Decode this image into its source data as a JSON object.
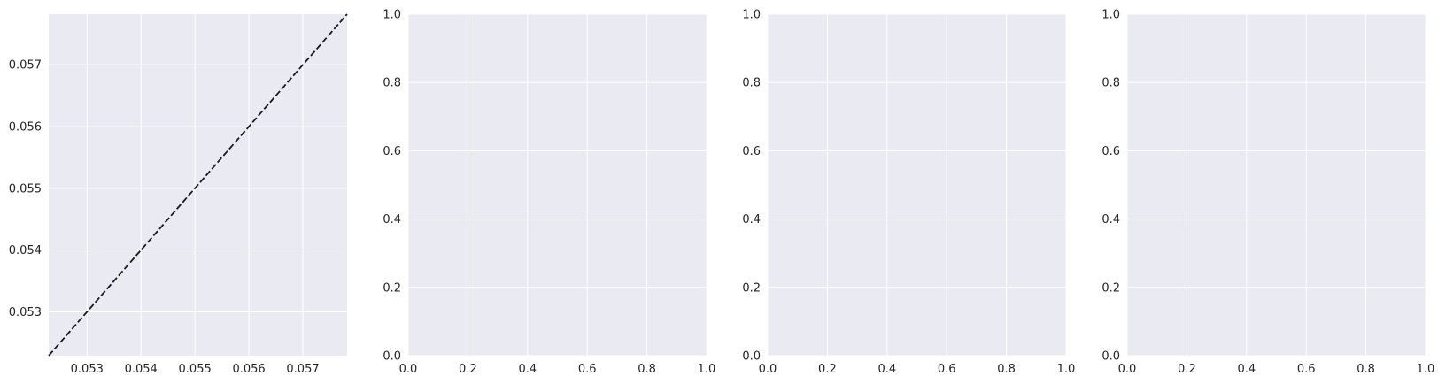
{
  "chart_data": [
    {
      "type": "line",
      "title": "",
      "xlabel": "",
      "ylabel": "",
      "xlim": [
        0.05229,
        0.05782
      ],
      "ylim": [
        0.05229,
        0.05782
      ],
      "xticks": [
        0.053,
        0.054,
        0.055,
        0.056,
        0.057
      ],
      "yticks": [
        0.053,
        0.054,
        0.055,
        0.056,
        0.057
      ],
      "xtick_labels": [
        "0.053",
        "0.054",
        "0.055",
        "0.056",
        "0.057"
      ],
      "ytick_labels": [
        "0.053",
        "0.054",
        "0.055",
        "0.056",
        "0.057"
      ],
      "grid": true,
      "series": [
        {
          "x": [
            0.05229,
            0.05782
          ],
          "y": [
            0.05229,
            0.05782
          ],
          "style": "dashed",
          "color": "#1a1a1a"
        }
      ]
    },
    {
      "type": "line",
      "title": "",
      "xlabel": "",
      "ylabel": "",
      "xlim": [
        0,
        1
      ],
      "ylim": [
        0,
        1
      ],
      "xticks": [
        0,
        0.2,
        0.4,
        0.6,
        0.8,
        1.0
      ],
      "yticks": [
        0,
        0.2,
        0.4,
        0.6,
        0.8,
        1.0
      ],
      "xtick_labels": [
        "0.0",
        "0.2",
        "0.4",
        "0.6",
        "0.8",
        "1.0"
      ],
      "ytick_labels": [
        "0.0",
        "0.2",
        "0.4",
        "0.6",
        "0.8",
        "1.0"
      ],
      "grid": true,
      "series": []
    },
    {
      "type": "line",
      "title": "",
      "xlabel": "",
      "ylabel": "",
      "xlim": [
        0,
        1
      ],
      "ylim": [
        0,
        1
      ],
      "xticks": [
        0,
        0.2,
        0.4,
        0.6,
        0.8,
        1.0
      ],
      "yticks": [
        0,
        0.2,
        0.4,
        0.6,
        0.8,
        1.0
      ],
      "xtick_labels": [
        "0.0",
        "0.2",
        "0.4",
        "0.6",
        "0.8",
        "1.0"
      ],
      "ytick_labels": [
        "0.0",
        "0.2",
        "0.4",
        "0.6",
        "0.8",
        "1.0"
      ],
      "grid": true,
      "series": []
    },
    {
      "type": "line",
      "title": "",
      "xlabel": "",
      "ylabel": "",
      "xlim": [
        0,
        1
      ],
      "ylim": [
        0,
        1
      ],
      "xticks": [
        0,
        0.2,
        0.4,
        0.6,
        0.8,
        1.0
      ],
      "yticks": [
        0,
        0.2,
        0.4,
        0.6,
        0.8,
        1.0
      ],
      "xtick_labels": [
        "0.0",
        "0.2",
        "0.4",
        "0.6",
        "0.8",
        "1.0"
      ],
      "ytick_labels": [
        "0.0",
        "0.2",
        "0.4",
        "0.6",
        "0.8",
        "1.0"
      ],
      "grid": true,
      "series": []
    }
  ],
  "style": {
    "axes_facecolor": "#eaeaf2",
    "grid_color": "#ffffff",
    "text_color": "#262626"
  }
}
